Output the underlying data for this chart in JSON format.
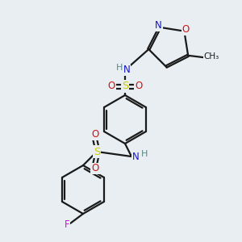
{
  "background_color": "#e8eef2",
  "bond_color": "#1a1a1a",
  "atom_colors": {
    "C": "#1a1a1a",
    "N": "#1414cc",
    "O": "#cc1414",
    "S": "#cccc00",
    "F": "#cc14cc",
    "H": "#558888"
  },
  "figsize": [
    3.0,
    3.0
  ],
  "dpi": 100
}
